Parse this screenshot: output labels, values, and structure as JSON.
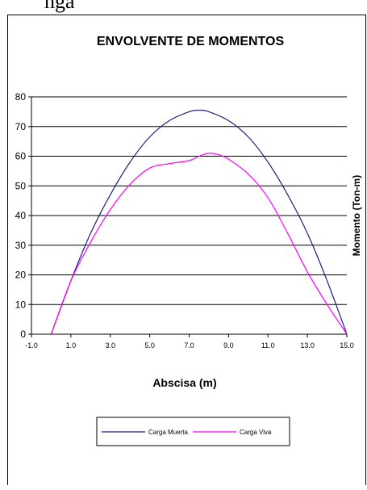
{
  "page_top_text": "nga",
  "chart_data": {
    "type": "line",
    "title": "ENVOLVENTE DE MOMENTOS",
    "xlabel": "Abscisa (m)",
    "ylabel": "Momento (Ton-m)",
    "xlim": [
      -1.0,
      15.0
    ],
    "ylim": [
      0,
      80
    ],
    "x_ticks": [
      "-1.0",
      "1.0",
      "3.0",
      "5.0",
      "7.0",
      "9.0",
      "11.0",
      "13.0",
      "15.0"
    ],
    "y_ticks": [
      "0",
      "10",
      "20",
      "30",
      "40",
      "50",
      "60",
      "70",
      "80"
    ],
    "grid": "horizontal",
    "legend_position": "bottom",
    "series": [
      {
        "name": "Carga Muerta",
        "color": "#1f1f7a",
        "x": [
          0.0,
          1.0,
          2.0,
          3.0,
          4.0,
          5.0,
          6.0,
          7.0,
          7.5,
          8.0,
          9.0,
          10.0,
          11.0,
          12.0,
          13.0,
          14.0,
          15.0
        ],
        "y": [
          0,
          18,
          34,
          47,
          58,
          66.5,
          72,
          75,
          75.5,
          75,
          72,
          66.5,
          58,
          47,
          34,
          18,
          0
        ]
      },
      {
        "name": "Carga Viva",
        "color": "#ff00ff",
        "x": [
          0.0,
          1.0,
          2.0,
          3.0,
          4.0,
          5.0,
          6.0,
          7.0,
          7.5,
          8.0,
          8.5,
          9.0,
          10.0,
          11.0,
          12.0,
          13.0,
          14.0,
          15.0
        ],
        "y": [
          0,
          18,
          31,
          42,
          50.5,
          56,
          57.5,
          58.5,
          60,
          61,
          60.5,
          59,
          54,
          46,
          34,
          21,
          10,
          0
        ]
      }
    ]
  }
}
